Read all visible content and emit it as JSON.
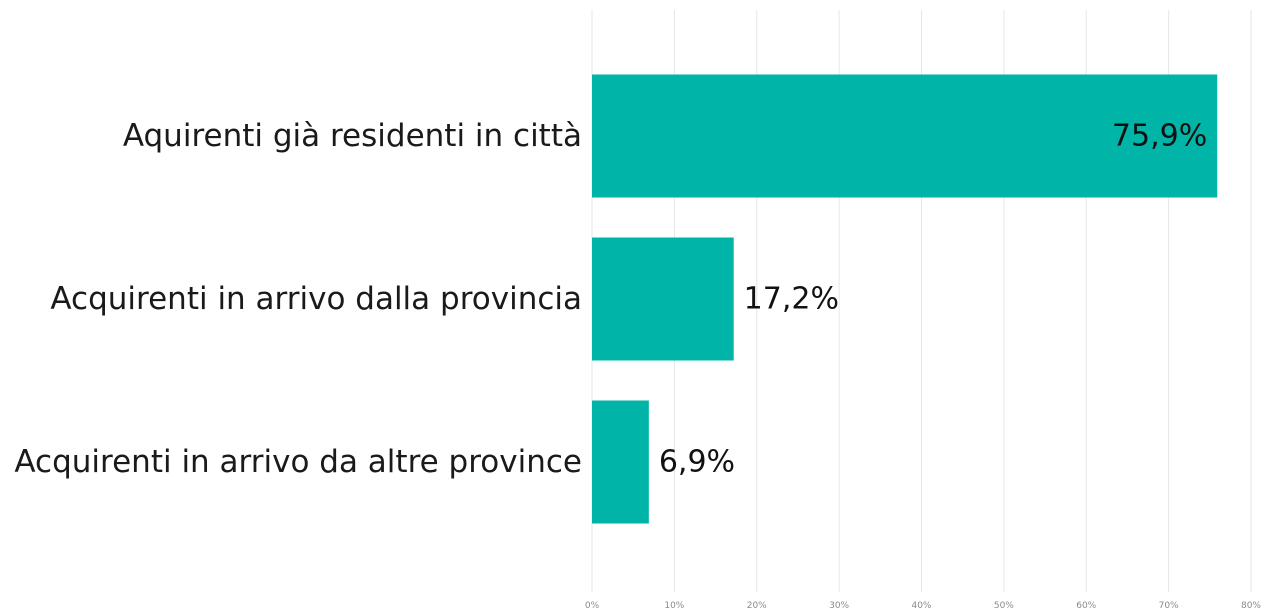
{
  "chart_data": {
    "type": "bar",
    "orientation": "horizontal",
    "categories": [
      "Aquirenti già residenti in città",
      "Acquirenti in arrivo dalla provincia",
      "Acquirenti in arrivo da altre province"
    ],
    "values": [
      75.9,
      17.2,
      6.9
    ],
    "value_labels": [
      "75,9%",
      "17,2%",
      "6,9%"
    ],
    "title": "",
    "xlabel": "",
    "ylabel": "",
    "xlim": [
      0,
      80
    ],
    "x_ticks": [
      0,
      10,
      20,
      30,
      40,
      50,
      60,
      70,
      80
    ],
    "x_tick_labels": [
      "0%",
      "10%",
      "20%",
      "30%",
      "40%",
      "50%",
      "60%",
      "70%",
      "80%"
    ],
    "grid": true,
    "legend": "none",
    "bar_color": "#00b5a8"
  }
}
